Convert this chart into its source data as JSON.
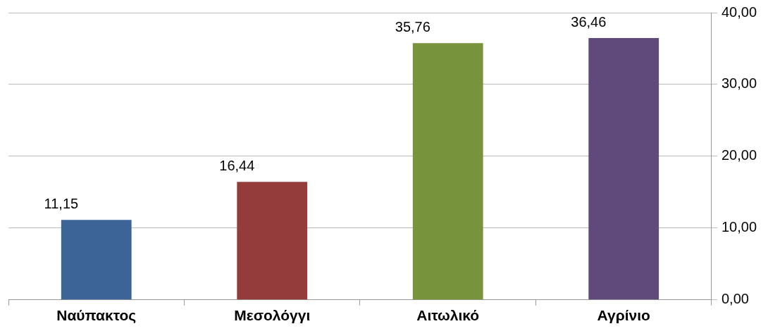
{
  "chart_data": {
    "type": "bar",
    "categories": [
      "Ναύπακτος",
      "Μεσολόγγι",
      "Αιτωλικό",
      "Αγρίνιο"
    ],
    "values": [
      11.15,
      16.44,
      35.76,
      36.46
    ],
    "colors": [
      "#3c6496",
      "#943c3c",
      "#77933c",
      "#604a7b"
    ],
    "value_labels": [
      "11,15",
      "16,44",
      "35,76",
      "36,46"
    ],
    "ylim": [
      0,
      40
    ],
    "yticks": [
      {
        "value": 0,
        "label": "0,00"
      },
      {
        "value": 10,
        "label": "10,00"
      },
      {
        "value": 20,
        "label": "20,00"
      },
      {
        "value": 30,
        "label": "30,00"
      },
      {
        "value": 40,
        "label": "40,00"
      }
    ],
    "grid": "y",
    "legend": false
  }
}
